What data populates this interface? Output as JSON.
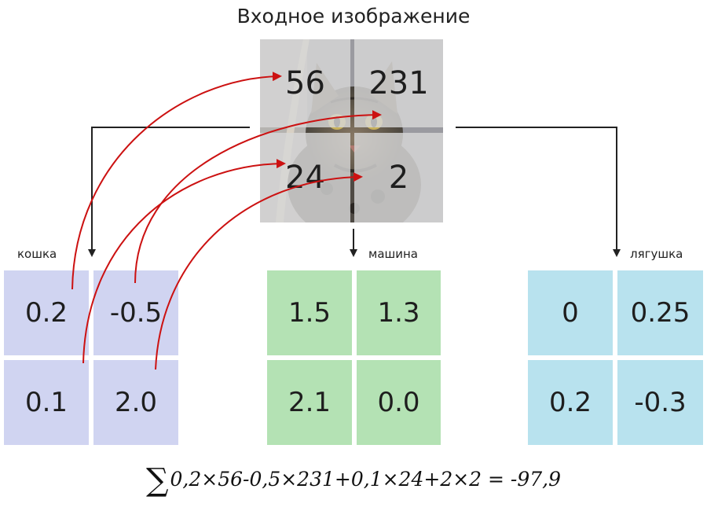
{
  "title": "Входное изображение",
  "image": {
    "pixels": [
      "56",
      "231",
      "24",
      "2"
    ]
  },
  "classes": [
    {
      "label": "кошка",
      "color": "#d0d4f1",
      "weights": [
        "0.2",
        "-0.5",
        "0.1",
        "2.0"
      ]
    },
    {
      "label": "машина",
      "color": "#b4e2b4",
      "weights": [
        "1.5",
        "1.3",
        "2.1",
        "0.0"
      ]
    },
    {
      "label": "лягушка",
      "color": "#b8e2ee",
      "weights": [
        "0",
        "0.25",
        "0.2",
        "-0.3"
      ]
    }
  ],
  "formula": {
    "sigma": "∑",
    "expression": "0,2×56-0,5×231+0,1×24+2×2 = -97,9"
  },
  "colors": {
    "arrow_red": "#cc1111",
    "arrow_black": "#222222"
  }
}
